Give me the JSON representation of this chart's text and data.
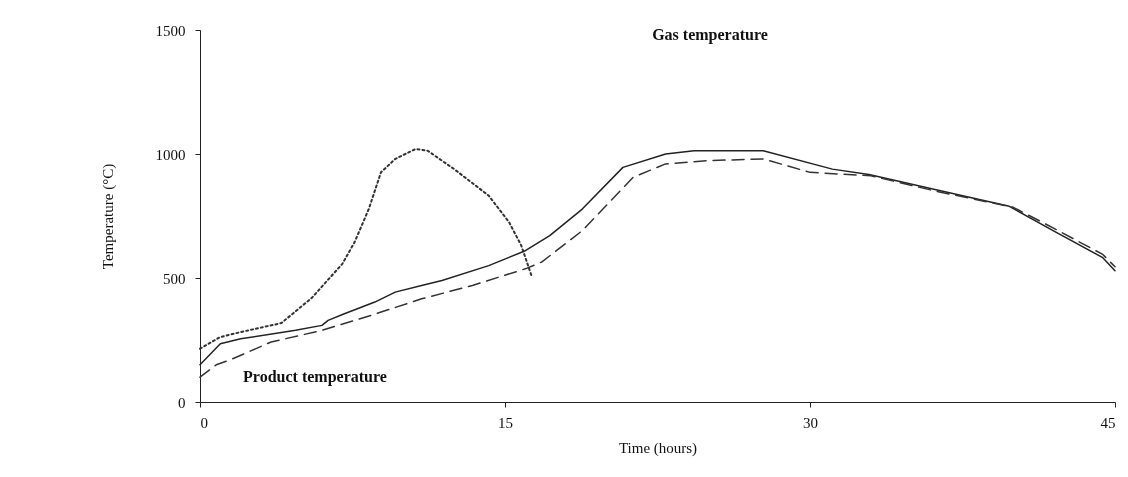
{
  "chart_data": {
    "type": "line",
    "xlabel": "Time (hours)",
    "ylabel": "Temperature (°C)",
    "xlim": [
      0,
      45
    ],
    "xticks": [
      0,
      15,
      30,
      45
    ],
    "ylim": [
      0,
      1500
    ],
    "yticks": [
      0,
      500,
      1000,
      1500
    ],
    "grid": false,
    "annotations": [
      "Gas temperature",
      "Product temperature"
    ],
    "series": [
      {
        "color": "#333333",
        "line_style": "dotted",
        "x": [
          0,
          1,
          2,
          4,
          5.5,
          7,
          7.6,
          8.3,
          8.9,
          9.6,
          10.6,
          11.2,
          12.5,
          14.2,
          15.2,
          15.8,
          16.3
        ],
        "values": [
          215,
          262,
          282,
          318,
          420,
          557,
          644,
          778,
          926,
          980,
          1020,
          1013,
          939,
          832,
          725,
          631,
          510
        ]
      },
      {
        "color": "#222222",
        "line_style": "solid",
        "x": [
          0,
          1,
          2,
          4,
          4.7,
          6,
          6.3,
          7.1,
          8.6,
          9.6,
          10.9,
          11.9,
          14.2,
          16,
          17.2,
          18.8,
          20.8,
          22.9,
          24.3,
          27.7,
          31.1,
          32.9,
          36.2,
          39.8,
          42,
          44.4,
          45
        ],
        "values": [
          150,
          235,
          255,
          280,
          289,
          309,
          329,
          356,
          403,
          443,
          470,
          490,
          550,
          610,
          671,
          778,
          946,
          1000,
          1013,
          1013,
          939,
          917,
          856,
          789,
          689,
          582,
          529
        ]
      },
      {
        "color": "#333333",
        "line_style": "dashed",
        "x": [
          0,
          0.8,
          1.6,
          3.5,
          6,
          8.4,
          10.9,
          13.4,
          16,
          16.8,
          18.8,
          21.3,
          22.9,
          24.9,
          27.7,
          30,
          33,
          36.2,
          40,
          42,
          44.4,
          45
        ],
        "values": [
          100,
          150,
          174,
          242,
          289,
          349,
          416,
          470,
          537,
          564,
          691,
          906,
          960,
          973,
          980,
          926,
          912,
          850,
          785,
          700,
          595,
          545
        ]
      }
    ]
  }
}
